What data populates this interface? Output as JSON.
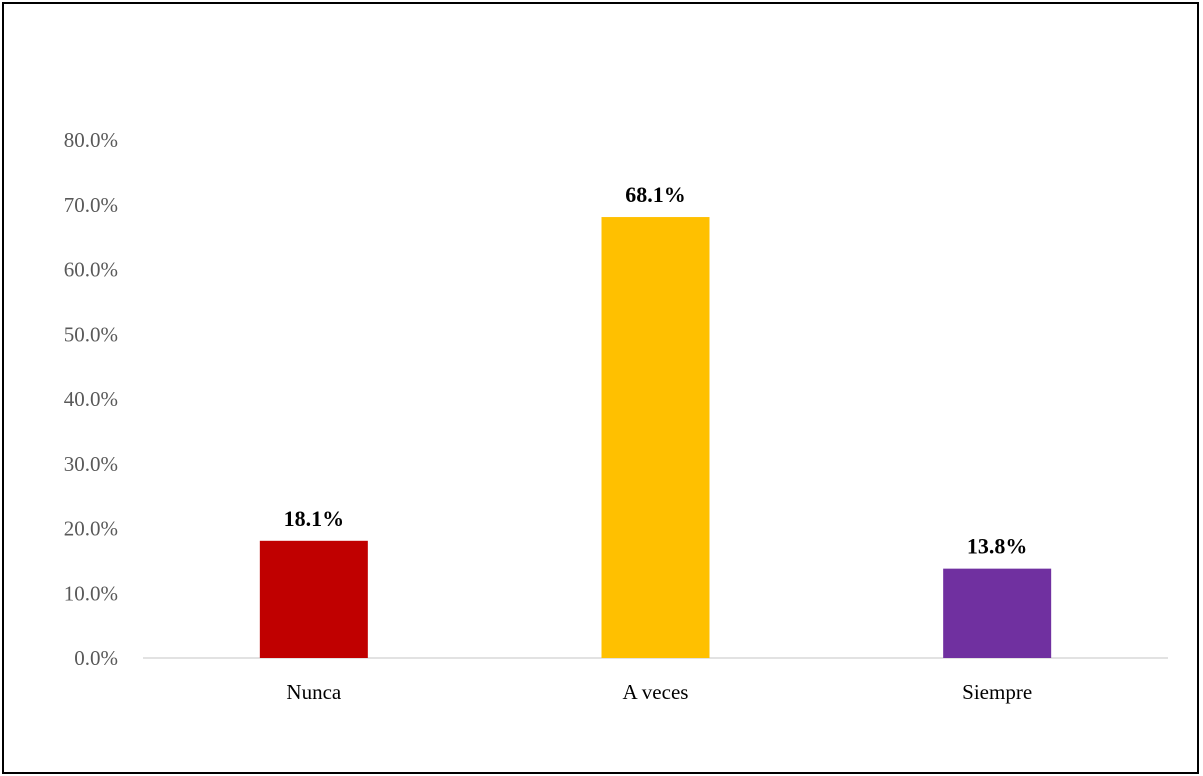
{
  "chart_data": {
    "type": "bar",
    "categories": [
      "Nunca",
      "A veces",
      "Siempre"
    ],
    "values": [
      18.1,
      68.1,
      13.8
    ],
    "data_labels": [
      "18.1%",
      "68.1%",
      "13.8%"
    ],
    "colors": [
      "#c00000",
      "#ffc000",
      "#7030a0"
    ],
    "ylim": [
      0,
      80
    ],
    "yticks": [
      0,
      10,
      20,
      30,
      40,
      50,
      60,
      70,
      80
    ],
    "ytick_labels": [
      "0.0%",
      "10.0%",
      "20.0%",
      "30.0%",
      "40.0%",
      "50.0%",
      "60.0%",
      "70.0%",
      "80.0%"
    ],
    "grid": false,
    "legend": "none",
    "title": "",
    "xlabel": "",
    "ylabel": ""
  }
}
